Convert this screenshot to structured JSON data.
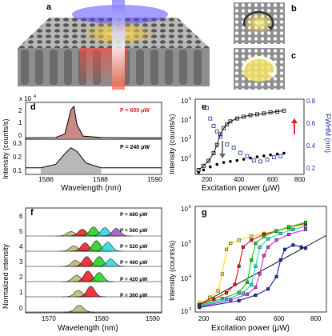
{
  "panels": {
    "a": "a",
    "b": "b",
    "c": "c",
    "d": "d",
    "e": "e",
    "f": "f",
    "g": "g"
  },
  "panel_d": {
    "scale_label": "x 10",
    "scale_exp": "4",
    "ylabel": "Intensity (counts/s)",
    "xlabel": "Wavelength (nm)",
    "top_power": "P = 600 μW",
    "bottom_power": "P = 240 μW",
    "top_power_color": "#e8141e",
    "top_ticks": [
      "2",
      "1",
      "0"
    ],
    "bottom_ticks": [
      "0.3",
      "0.2",
      "0.1"
    ],
    "xticks": [
      "1586",
      "1588",
      "1590"
    ]
  },
  "panel_e": {
    "ylabel_left": "Intensity (counts/s)",
    "ylabel_right": "FWHM (nm)",
    "xlabel": "Excitation power (μW)",
    "yticks_left": [
      "10",
      "10",
      "10",
      "10",
      "10"
    ],
    "yticks_left_exp": [
      "5",
      "4",
      "3",
      "2",
      ""
    ],
    "yticks_right": [
      "0.8",
      "0.6",
      "0.4",
      "0.2"
    ],
    "xticks": [
      "200",
      "400",
      "600",
      "800"
    ],
    "right_axis_color": "#1a2fa8"
  },
  "panel_f": {
    "ylabel": "Normalized intensity",
    "xlabel": "Wavelength (nm)",
    "powers": [
      "P = 680 μW",
      "P = 560 μW",
      "P = 520 μW",
      "P = 460 μW",
      "P = 420 μW",
      "P = 360 μW"
    ],
    "yticks": [
      "6",
      "5",
      "4",
      "3",
      "2",
      "1",
      "0"
    ],
    "xticks": [
      "1570",
      "1575",
      "1580",
      "1585",
      "1590"
    ]
  },
  "panel_g": {
    "ylabel": "Intensity (counts/s)",
    "xlabel": "Excitation power (μW)",
    "yticks": [
      "10",
      "10",
      "10",
      "10"
    ],
    "yticks_exp": [
      "6",
      "5",
      "4",
      "3"
    ],
    "xticks": [
      "200",
      "400",
      "600",
      "800"
    ]
  },
  "chart_data": [
    {
      "type": "line",
      "panel": "d-top",
      "x": [
        1585.5,
        1586.5,
        1586.8,
        1587.0,
        1587.1,
        1587.2,
        1587.4,
        1588,
        1589,
        1590
      ],
      "series": [
        {
          "values": [
            0.05,
            0.08,
            0.4,
            2.5,
            2.8,
            1.2,
            0.2,
            0.08,
            0.05,
            0.05
          ]
        }
      ],
      "ylim": [
        0,
        3
      ],
      "xlim": [
        1585.5,
        1590
      ]
    },
    {
      "type": "line",
      "panel": "d-bottom",
      "x": [
        1585.5,
        1586.0,
        1586.5,
        1586.8,
        1587.0,
        1587.2,
        1587.5,
        1588,
        1589,
        1590
      ],
      "series": [
        {
          "values": [
            0.1,
            0.1,
            0.13,
            0.22,
            0.27,
            0.24,
            0.14,
            0.1,
            0.1,
            0.1
          ]
        }
      ],
      "ylim": [
        0.05,
        0.33
      ],
      "xlim": [
        1585.5,
        1590
      ]
    },
    {
      "type": "scatter",
      "panel": "e",
      "xlim": [
        150,
        800
      ],
      "ylim_log": [
        100,
        100000
      ],
      "series": [
        {
          "marker": "open-square-black",
          "x": [
            170,
            200,
            230,
            260,
            280,
            300,
            320,
            340,
            360,
            400,
            440,
            480,
            520,
            560,
            600,
            640,
            680
          ],
          "values": [
            150,
            220,
            350,
            700,
            1500,
            4000,
            7000,
            10000,
            13000,
            17000,
            20000,
            23000,
            25000,
            27000,
            30000,
            32000,
            35000
          ]
        },
        {
          "marker": "filled-circle-black",
          "x": [
            170,
            200,
            240,
            280,
            320,
            360,
            400,
            440,
            480,
            520,
            560,
            600,
            640,
            680
          ],
          "values": [
            120,
            150,
            200,
            250,
            300,
            330,
            360,
            400,
            450,
            500,
            550,
            600,
            650,
            700
          ]
        },
        {
          "marker": "open-square-blue",
          "x": [
            220,
            240,
            260,
            280,
            300,
            340,
            380,
            420,
            460,
            500,
            540,
            580,
            620,
            660
          ],
          "values": [
            0.72,
            0.62,
            0.55,
            0.5,
            0.45,
            0.38,
            0.35,
            0.3,
            0.27,
            0.23,
            0.22,
            0.24,
            0.26,
            0.27
          ]
        }
      ],
      "annotations": [
        {
          "x": 240,
          "color": "#666666"
        },
        {
          "x": 640,
          "color": "#e8141e"
        }
      ]
    },
    {
      "type": "area",
      "panel": "f",
      "xlim": [
        1566,
        1590
      ],
      "ylim": [
        0,
        7
      ]
    },
    {
      "type": "line",
      "panel": "g",
      "xlim": [
        170,
        800
      ],
      "ylim_log": [
        1000,
        1000000
      ],
      "series": [
        {
          "color": "#f2e21c",
          "x": [
            190,
            240,
            280,
            300,
            320,
            340,
            380,
            440,
            500,
            560,
            620,
            700
          ],
          "values": [
            1800,
            2600,
            4000,
            12000,
            60000,
            90000,
            110000,
            140000,
            170000,
            200000,
            240000,
            300000
          ]
        },
        {
          "color": "#e8141e",
          "x": [
            190,
            260,
            320,
            360,
            380,
            400,
            440,
            500,
            560,
            620,
            700
          ],
          "values": [
            1600,
            2300,
            3500,
            6000,
            20000,
            70000,
            110000,
            160000,
            200000,
            260000,
            330000
          ]
        },
        {
          "color": "#18d018",
          "x": [
            190,
            300,
            380,
            420,
            440,
            460,
            500,
            560,
            620,
            700
          ],
          "values": [
            1500,
            2400,
            3600,
            7000,
            30000,
            90000,
            140000,
            200000,
            260000,
            350000
          ]
        },
        {
          "color": "#20d8d8",
          "x": [
            190,
            320,
            400,
            440,
            460,
            480,
            520,
            580,
            640,
            700
          ],
          "values": [
            1450,
            2300,
            3400,
            6000,
            20000,
            70000,
            120000,
            170000,
            220000,
            270000
          ]
        },
        {
          "color": "#d838d8",
          "x": [
            190,
            340,
            420,
            460,
            480,
            500,
            520,
            560,
            620,
            700
          ],
          "values": [
            1400,
            2200,
            3200,
            5000,
            12000,
            40000,
            70000,
            110000,
            160000,
            220000
          ]
        },
        {
          "color": "#1a2fa8",
          "x": [
            190,
            380,
            460,
            520,
            560,
            580,
            600,
            640,
            680,
            700
          ],
          "values": [
            1350,
            2100,
            3000,
            4500,
            10000,
            30000,
            60000,
            80000,
            70000,
            65000
          ]
        }
      ]
    }
  ]
}
